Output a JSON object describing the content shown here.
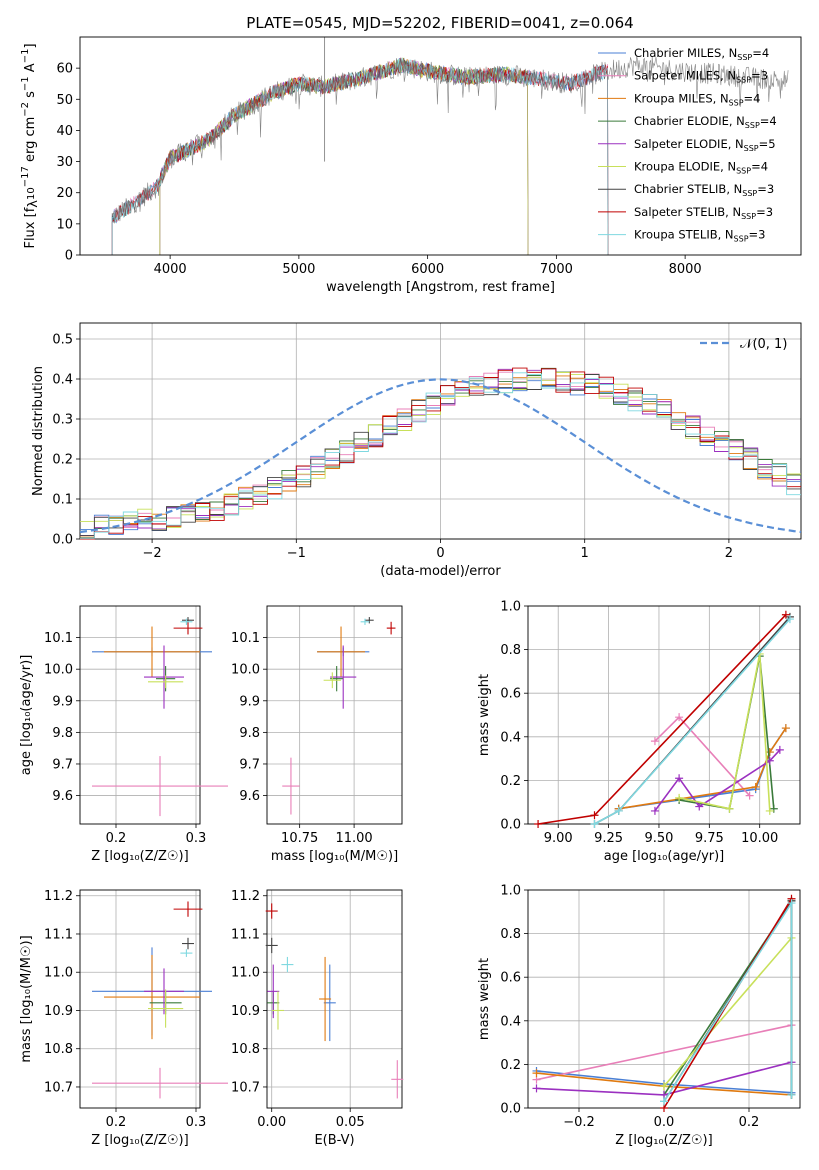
{
  "figure": {
    "title": "PLATE=0545, MJD=52202, FIBERID=0041, z=0.064"
  },
  "colors": {
    "chabrier_miles": "#4a7fd4",
    "salpeter_miles": "#e87fb8",
    "kroupa_miles": "#e07a10",
    "chabrier_elodie": "#3a7a3a",
    "salpeter_elodie": "#9b30c0",
    "kroupa_elodie": "#c8e05a",
    "chabrier_stelib": "#444444",
    "salpeter_stelib": "#c00000",
    "kroupa_stelib": "#7fd8e0",
    "gaussian": "#5a8fd6",
    "grid": "#b0b0b0"
  },
  "chart_data": [
    {
      "id": "spectrum",
      "type": "line",
      "title": "PLATE=0545, MJD=52202, FIBERID=0041, z=0.064",
      "xlabel": "wavelength [Angstrom, rest frame]",
      "ylabel_parts": [
        "Flux [f",
        "λ",
        "10",
        "−17",
        " erg cm",
        "−2",
        " s",
        "−1",
        " A",
        "−1",
        "]"
      ],
      "xlim": [
        3300,
        8900
      ],
      "ylim": [
        0,
        70
      ],
      "xticks": [
        "4000",
        "5000",
        "6000",
        "7000",
        "8000"
      ],
      "yticks": [
        "0",
        "10",
        "20",
        "30",
        "40",
        "50",
        "60"
      ],
      "grid": false,
      "legend_position": "right",
      "series": [
        {
          "name": "Chabrier MILES, N_SSP=4",
          "label": "Chabrier MILES, N",
          "sub": "SSP",
          "suffix": "=4"
        },
        {
          "name": "Salpeter MILES, N_SSP=3",
          "label": "Salpeter MILES, N",
          "sub": "SSP",
          "suffix": "=3"
        },
        {
          "name": "Kroupa MILES, N_SSP=4",
          "label": "Kroupa MILES, N",
          "sub": "SSP",
          "suffix": "=4"
        },
        {
          "name": "Chabrier ELODIE, N_SSP=4",
          "label": "Chabrier ELODIE, N",
          "sub": "SSP",
          "suffix": "=4"
        },
        {
          "name": "Salpeter ELODIE, N_SSP=5",
          "label": "Salpeter ELODIE, N",
          "sub": "SSP",
          "suffix": "=5"
        },
        {
          "name": "Kroupa ELODIE, N_SSP=4",
          "label": "Kroupa ELODIE, N",
          "sub": "SSP",
          "suffix": "=4"
        },
        {
          "name": "Chabrier STELIB, N_SSP=3",
          "label": "Chabrier STELIB, N",
          "sub": "SSP",
          "suffix": "=3"
        },
        {
          "name": "Salpeter STELIB, N_SSP=3",
          "label": "Salpeter STELIB, N",
          "sub": "SSP",
          "suffix": "=3"
        },
        {
          "name": "Kroupa STELIB, N_SSP=3",
          "label": "Kroupa STELIB, N",
          "sub": "SSP",
          "suffix": "=3"
        }
      ],
      "model_ranges": [
        [
          3550,
          7400
        ],
        [
          3550,
          7400
        ],
        [
          3920,
          6780
        ],
        [
          3920,
          6780
        ],
        [
          3920,
          6780
        ],
        [
          3920,
          6780
        ],
        [
          3550,
          7400
        ],
        [
          3550,
          7400
        ],
        [
          3550,
          7400
        ]
      ],
      "continuum_x": [
        3550,
        3700,
        3900,
        4000,
        4300,
        4500,
        4800,
        5000,
        5200,
        5500,
        5800,
        6000,
        6300,
        6600,
        6800,
        7100,
        7300,
        7600,
        8000,
        8500,
        8800
      ],
      "continuum_y": [
        12,
        16,
        22,
        31,
        37,
        45,
        52,
        55,
        54,
        57,
        61,
        59,
        57,
        58,
        57,
        55,
        58,
        61,
        59,
        57,
        56
      ]
    },
    {
      "id": "residuals",
      "type": "histogram",
      "xlabel": "(data-model)/error",
      "ylabel": "Normed distribution",
      "xlim": [
        -2.5,
        2.5
      ],
      "ylim": [
        0,
        0.54
      ],
      "xticks": [
        "−2",
        "−1",
        "0",
        "1",
        "2"
      ],
      "yticks": [
        "0.0",
        "0.1",
        "0.2",
        "0.3",
        "0.4",
        "0.5"
      ],
      "grid": true,
      "legend_position": "upper right",
      "gaussian_label": "𝒩(0, 1)",
      "bin_start": -2.5,
      "bin_width": 0.1,
      "envelope": [
        0.02,
        0.03,
        0.035,
        0.04,
        0.045,
        0.05,
        0.055,
        0.06,
        0.065,
        0.075,
        0.085,
        0.1,
        0.115,
        0.13,
        0.145,
        0.16,
        0.18,
        0.2,
        0.22,
        0.24,
        0.26,
        0.28,
        0.3,
        0.32,
        0.34,
        0.355,
        0.37,
        0.38,
        0.39,
        0.395,
        0.4,
        0.4,
        0.4,
        0.395,
        0.39,
        0.385,
        0.375,
        0.365,
        0.35,
        0.335,
        0.32,
        0.3,
        0.28,
        0.26,
        0.24,
        0.22,
        0.2,
        0.18,
        0.16,
        0.14
      ],
      "series_order": [
        "chabrier_miles",
        "salpeter_miles",
        "kroupa_miles",
        "chabrier_elodie",
        "salpeter_elodie",
        "kroupa_elodie",
        "chabrier_stelib",
        "salpeter_stelib",
        "kroupa_stelib"
      ]
    },
    {
      "id": "age_vs_z",
      "type": "scatter",
      "xlabel": "Z [log₁₀(Z/Z☉)]",
      "ylabel": "age  [log₁₀(age/yr)]",
      "xlim": [
        0.155,
        0.305
      ],
      "ylim": [
        9.51,
        10.2
      ],
      "xticks": [
        "0.2",
        "0.3"
      ],
      "yticks": [
        "9.6",
        "9.7",
        "9.8",
        "9.9",
        "10.0",
        "10.1"
      ],
      "grid": true,
      "points": [
        {
          "series": "chabrier_miles",
          "x": 0.245,
          "y": 10.055,
          "xerr": 0.075,
          "yerr": 0.0
        },
        {
          "series": "salpeter_miles",
          "x": 0.255,
          "y": 9.63,
          "xerr": 0.085,
          "yerr": 0.095
        },
        {
          "series": "kroupa_miles",
          "x": 0.245,
          "y": 10.055,
          "xerr": 0.06,
          "yerr": 0.08
        },
        {
          "series": "chabrier_elodie",
          "x": 0.262,
          "y": 9.97,
          "xerr": 0.012,
          "yerr": 0.04
        },
        {
          "series": "salpeter_elodie",
          "x": 0.26,
          "y": 9.975,
          "xerr": 0.025,
          "yerr": 0.1
        },
        {
          "series": "kroupa_elodie",
          "x": 0.262,
          "y": 9.96,
          "xerr": 0.022,
          "yerr": 0.02
        },
        {
          "series": "chabrier_stelib",
          "x": 0.29,
          "y": 10.155,
          "xerr": 0.0,
          "yerr": 0.01
        },
        {
          "series": "salpeter_stelib",
          "x": 0.29,
          "y": 10.13,
          "xerr": 0.018,
          "yerr": 0.02
        },
        {
          "series": "kroupa_stelib",
          "x": 0.288,
          "y": 10.15,
          "xerr": 0.0,
          "yerr": 0.01
        }
      ]
    },
    {
      "id": "age_vs_mass",
      "type": "scatter",
      "xlabel": "mass [log₁₀(M/M☉)]",
      "ylabel": "",
      "xlim": [
        10.6,
        11.22
      ],
      "ylim": [
        9.51,
        10.2
      ],
      "xticks": [
        "10.75",
        "11.00"
      ],
      "yticks": [
        "9.6",
        "9.7",
        "9.8",
        "9.9",
        "10.0",
        "10.1"
      ],
      "grid": true,
      "points": [
        {
          "series": "chabrier_miles",
          "x": 10.95,
          "y": 10.055,
          "xerr": 0.12,
          "yerr": 0.0
        },
        {
          "series": "salpeter_miles",
          "x": 10.71,
          "y": 9.63,
          "xerr": 0.04,
          "yerr": 0.09
        },
        {
          "series": "kroupa_miles",
          "x": 10.94,
          "y": 10.055,
          "xerr": 0.11,
          "yerr": 0.08
        },
        {
          "series": "chabrier_elodie",
          "x": 10.92,
          "y": 9.97,
          "xerr": 0.03,
          "yerr": 0.04
        },
        {
          "series": "salpeter_elodie",
          "x": 10.95,
          "y": 9.975,
          "xerr": 0.06,
          "yerr": 0.1
        },
        {
          "series": "kroupa_elodie",
          "x": 10.9,
          "y": 9.965,
          "xerr": 0.04,
          "yerr": 0.025
        },
        {
          "series": "chabrier_stelib",
          "x": 11.07,
          "y": 10.155,
          "xerr": 0.02,
          "yerr": 0.01
        },
        {
          "series": "salpeter_stelib",
          "x": 11.17,
          "y": 10.13,
          "xerr": 0.02,
          "yerr": 0.02
        },
        {
          "series": "kroupa_stelib",
          "x": 11.05,
          "y": 10.15,
          "xerr": 0.02,
          "yerr": 0.01
        }
      ]
    },
    {
      "id": "weight_vs_age",
      "type": "line",
      "xlabel": "age  [log₁₀(age/yr)]",
      "ylabel": "mass weight",
      "xlim": [
        8.85,
        10.2
      ],
      "ylim": [
        0,
        1
      ],
      "xticks": [
        "9.00",
        "9.25",
        "9.50",
        "9.75",
        "10.00"
      ],
      "yticks": [
        "0.0",
        "0.2",
        "0.4",
        "0.6",
        "0.8",
        "1.0"
      ],
      "grid": true,
      "series": [
        {
          "key": "chabrier_miles",
          "x": [
            9.3,
            9.98,
            10.05,
            10.13
          ],
          "y": [
            0.07,
            0.16,
            0.33,
            0.44
          ]
        },
        {
          "key": "salpeter_miles",
          "x": [
            9.48,
            9.6,
            9.95
          ],
          "y": [
            0.38,
            0.49,
            0.13
          ]
        },
        {
          "key": "kroupa_miles",
          "x": [
            9.3,
            9.98,
            10.05,
            10.13
          ],
          "y": [
            0.07,
            0.17,
            0.33,
            0.44
          ]
        },
        {
          "key": "chabrier_elodie",
          "x": [
            9.6,
            9.85,
            10.0,
            10.07
          ],
          "y": [
            0.11,
            0.07,
            0.77,
            0.07
          ]
        },
        {
          "key": "salpeter_elodie",
          "x": [
            9.48,
            9.6,
            9.7,
            10.05,
            10.1
          ],
          "y": [
            0.06,
            0.21,
            0.08,
            0.29,
            0.34
          ]
        },
        {
          "key": "kroupa_elodie",
          "x": [
            9.6,
            9.85,
            10.0,
            10.05
          ],
          "y": [
            0.12,
            0.07,
            0.78,
            0.06
          ]
        },
        {
          "key": "chabrier_stelib",
          "x": [
            9.18,
            9.3,
            10.15
          ],
          "y": [
            0.0,
            0.06,
            0.95
          ]
        },
        {
          "key": "salpeter_stelib",
          "x": [
            8.9,
            9.18,
            10.13
          ],
          "y": [
            0.0,
            0.04,
            0.96
          ]
        },
        {
          "key": "kroupa_stelib",
          "x": [
            9.18,
            9.3,
            10.15
          ],
          "y": [
            0.0,
            0.06,
            0.94
          ]
        }
      ]
    },
    {
      "id": "mass_vs_z",
      "type": "scatter",
      "xlabel": "Z [log₁₀(Z/Z☉)]",
      "ylabel": "mass [log₁₀(M/M☉)]",
      "xlim": [
        0.155,
        0.305
      ],
      "ylim": [
        10.645,
        11.215
      ],
      "xticks": [
        "0.2",
        "0.3"
      ],
      "yticks": [
        "10.7",
        "10.8",
        "10.9",
        "11.0",
        "11.1",
        "11.2"
      ],
      "grid": true,
      "points": [
        {
          "series": "chabrier_miles",
          "x": 0.245,
          "y": 10.95,
          "xerr": 0.075,
          "yerr": 0.115
        },
        {
          "series": "salpeter_miles",
          "x": 0.255,
          "y": 10.71,
          "xerr": 0.085,
          "yerr": 0.04
        },
        {
          "series": "kroupa_miles",
          "x": 0.245,
          "y": 10.935,
          "xerr": 0.06,
          "yerr": 0.11
        },
        {
          "series": "chabrier_elodie",
          "x": 0.262,
          "y": 10.92,
          "xerr": 0.02,
          "yerr": 0.03
        },
        {
          "series": "salpeter_elodie",
          "x": 0.26,
          "y": 10.95,
          "xerr": 0.025,
          "yerr": 0.06
        },
        {
          "series": "kroupa_elodie",
          "x": 0.262,
          "y": 10.905,
          "xerr": 0.022,
          "yerr": 0.05
        },
        {
          "series": "chabrier_stelib",
          "x": 0.29,
          "y": 11.075,
          "xerr": 0.0,
          "yerr": 0.015
        },
        {
          "series": "salpeter_stelib",
          "x": 0.29,
          "y": 11.165,
          "xerr": 0.018,
          "yerr": 0.02
        },
        {
          "series": "kroupa_stelib",
          "x": 0.288,
          "y": 11.05,
          "xerr": 0.0,
          "yerr": 0.01
        }
      ]
    },
    {
      "id": "mass_vs_ebv",
      "type": "scatter",
      "xlabel": "E(B-V)",
      "ylabel": "",
      "xlim": [
        -0.003,
        0.083
      ],
      "ylim": [
        10.645,
        11.215
      ],
      "xticks": [
        "0.00",
        "0.05"
      ],
      "yticks": [
        "10.7",
        "10.8",
        "10.9",
        "11.0",
        "11.1",
        "11.2"
      ],
      "grid": true,
      "points": [
        {
          "series": "chabrier_miles",
          "x": 0.037,
          "y": 10.92,
          "xerr": 0.0,
          "yerr": 0.1
        },
        {
          "series": "salpeter_miles",
          "x": 0.08,
          "y": 10.72,
          "xerr": 0.0,
          "yerr": 0.05
        },
        {
          "series": "kroupa_miles",
          "x": 0.034,
          "y": 10.93,
          "xerr": 0.0,
          "yerr": 0.11
        },
        {
          "series": "chabrier_elodie",
          "x": 0.001,
          "y": 10.92,
          "xerr": 0.0,
          "yerr": 0.03
        },
        {
          "series": "salpeter_elodie",
          "x": 0.001,
          "y": 10.95,
          "xerr": 0.0,
          "yerr": 0.07
        },
        {
          "series": "kroupa_elodie",
          "x": 0.004,
          "y": 10.9,
          "xerr": 0.0,
          "yerr": 0.05
        },
        {
          "series": "chabrier_stelib",
          "x": 0.0,
          "y": 11.07,
          "xerr": 0.0,
          "yerr": 0.02
        },
        {
          "series": "salpeter_stelib",
          "x": 0.0,
          "y": 11.16,
          "xerr": 0.0,
          "yerr": 0.02
        },
        {
          "series": "kroupa_stelib",
          "x": 0.01,
          "y": 11.02,
          "xerr": 0.0,
          "yerr": 0.02
        }
      ]
    },
    {
      "id": "weight_vs_z",
      "type": "line",
      "xlabel": "Z [log₁₀(Z/Z☉)]",
      "ylabel": "mass weight",
      "xlim": [
        -0.32,
        0.32
      ],
      "ylim": [
        0,
        1
      ],
      "xticks": [
        "−0.2",
        "0.0",
        "0.2"
      ],
      "yticks": [
        "0.0",
        "0.2",
        "0.4",
        "0.6",
        "0.8",
        "1.0"
      ],
      "grid": true,
      "series": [
        {
          "key": "chabrier_miles",
          "x": [
            -0.3,
            0.0,
            0.3
          ],
          "y": [
            0.17,
            0.11,
            0.07
          ]
        },
        {
          "key": "salpeter_miles",
          "x": [
            -0.3,
            0.3
          ],
          "y": [
            0.13,
            0.38
          ]
        },
        {
          "key": "kroupa_miles",
          "x": [
            -0.3,
            0.0,
            0.3
          ],
          "y": [
            0.16,
            0.1,
            0.06
          ]
        },
        {
          "key": "chabrier_elodie",
          "x": [
            0.0,
            0.3,
            0.3
          ],
          "y": [
            0.06,
            0.95,
            0.06
          ]
        },
        {
          "key": "salpeter_elodie",
          "x": [
            -0.3,
            0.0,
            0.3
          ],
          "y": [
            0.09,
            0.06,
            0.21
          ]
        },
        {
          "key": "kroupa_elodie",
          "x": [
            0.0,
            0.3
          ],
          "y": [
            0.1,
            0.78
          ]
        },
        {
          "key": "chabrier_stelib",
          "x": [
            0.0,
            0.3,
            0.3
          ],
          "y": [
            0.03,
            0.95,
            0.06
          ]
        },
        {
          "key": "salpeter_stelib",
          "x": [
            0.0,
            0.3
          ],
          "y": [
            0.0,
            0.96
          ]
        },
        {
          "key": "kroupa_stelib",
          "x": [
            0.0,
            0.3,
            0.3
          ],
          "y": [
            0.03,
            0.94,
            0.06
          ]
        }
      ]
    }
  ]
}
